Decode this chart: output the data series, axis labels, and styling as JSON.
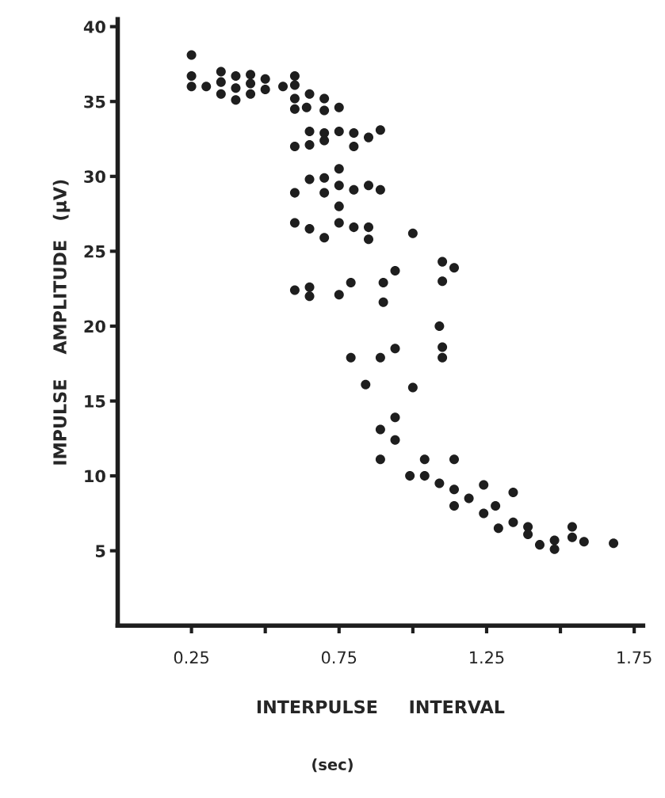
{
  "chart_data": {
    "type": "scatter",
    "xlabel": "INTERPULSE     INTERVAL",
    "ylabel": "IMPULSE    AMPLITUDE   (µV)",
    "annotations": [
      "(sec)"
    ],
    "marker": "circle",
    "grid": false,
    "xlim": [
      0,
      1.78
    ],
    "ylim": [
      0,
      40.5
    ],
    "xticks": [
      0.25,
      {
        "value": 0.5,
        "label": null
      },
      0.75,
      {
        "value": 1.0,
        "label": null
      },
      1.25,
      {
        "value": 1.5,
        "label": null
      },
      1.75
    ],
    "yticks": [
      5,
      10,
      15,
      20,
      25,
      30,
      35,
      40
    ],
    "series": [
      {
        "color": "#1e1e1e",
        "x": [
          0.25,
          0.25,
          0.25,
          0.3,
          0.35,
          0.35,
          0.35,
          0.4,
          0.4,
          0.4,
          0.45,
          0.45,
          0.45,
          0.5,
          0.5,
          0.56,
          0.6,
          0.6,
          0.6,
          0.6,
          0.65,
          0.64,
          0.7,
          0.7,
          0.75,
          0.65,
          0.7,
          0.7,
          0.75,
          0.8,
          0.85,
          0.89,
          0.6,
          0.65,
          0.8,
          0.75,
          0.65,
          0.7,
          0.75,
          0.6,
          0.7,
          0.8,
          0.85,
          0.89,
          0.75,
          0.6,
          0.65,
          0.7,
          0.75,
          0.8,
          0.85,
          0.85,
          1.0,
          0.94,
          1.1,
          1.14,
          0.6,
          0.65,
          0.65,
          0.75,
          0.79,
          0.9,
          0.9,
          1.1,
          1.09,
          1.1,
          1.1,
          0.79,
          0.89,
          0.94,
          0.84,
          1.0,
          0.94,
          0.89,
          0.94,
          0.89,
          1.04,
          1.14,
          0.99,
          1.04,
          1.09,
          1.14,
          1.24,
          1.19,
          1.14,
          1.24,
          1.28,
          1.34,
          1.29,
          1.34,
          1.39,
          1.39,
          1.43,
          1.48,
          1.48,
          1.54,
          1.54,
          1.58,
          1.68
        ],
        "values": [
          38.1,
          36.7,
          36.0,
          36.0,
          37.0,
          36.3,
          35.5,
          36.7,
          35.9,
          35.1,
          36.8,
          36.2,
          35.5,
          36.5,
          35.8,
          36.0,
          36.7,
          36.1,
          35.2,
          34.5,
          35.5,
          34.6,
          35.2,
          34.4,
          34.6,
          33.0,
          32.9,
          32.4,
          33.0,
          32.9,
          32.6,
          33.1,
          32.0,
          32.1,
          32.0,
          30.5,
          29.8,
          29.9,
          29.4,
          28.9,
          28.9,
          29.1,
          29.4,
          29.1,
          28.0,
          26.9,
          26.5,
          25.9,
          26.9,
          26.6,
          26.6,
          25.8,
          26.2,
          23.7,
          24.3,
          23.9,
          22.4,
          22.6,
          22.0,
          22.1,
          22.9,
          22.9,
          21.6,
          23.0,
          20.0,
          18.6,
          17.9,
          17.9,
          17.9,
          18.5,
          16.1,
          15.9,
          13.9,
          13.1,
          12.4,
          11.1,
          11.1,
          11.1,
          10.0,
          10.0,
          9.5,
          9.1,
          9.4,
          8.5,
          8.0,
          7.5,
          8.0,
          8.9,
          6.5,
          6.9,
          6.6,
          6.1,
          5.4,
          5.7,
          5.1,
          6.6,
          5.9,
          5.6,
          5.5
        ]
      }
    ]
  }
}
